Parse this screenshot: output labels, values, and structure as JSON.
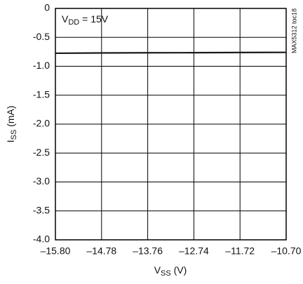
{
  "chart_data": {
    "type": "line",
    "annotation": {
      "symbol": "V",
      "subscript": "DD",
      "rest": " = 15V"
    },
    "side_note": "MAX5312 toc18",
    "xlabel": {
      "symbol": "V",
      "subscript": "SS",
      "unit": " (V)"
    },
    "ylabel": {
      "symbol": "I",
      "subscript": "SS",
      "unit": " (mA)"
    },
    "x": [
      -15.8,
      -14.78,
      -13.76,
      -12.74,
      -11.72,
      -10.7
    ],
    "series": [
      {
        "color": "#1a1a1a",
        "values": [
          -0.775,
          -0.77,
          -0.767,
          -0.765,
          -0.762,
          -0.76
        ]
      }
    ],
    "xlim": [
      -15.8,
      -10.7
    ],
    "xticks": [
      {
        "value": -15.8,
        "label": "–15.80"
      },
      {
        "value": -14.78,
        "label": "–14.78"
      },
      {
        "value": -13.76,
        "label": "–13.76"
      },
      {
        "value": -12.74,
        "label": "–12.74"
      },
      {
        "value": -11.72,
        "label": "–11.72"
      },
      {
        "value": -10.7,
        "label": "–10.70"
      }
    ],
    "ylim": [
      -4,
      0
    ],
    "yticks": [
      0,
      -0.5,
      {
        "value": -1,
        "label": "-1.0"
      },
      -1.5,
      {
        "value": -2,
        "label": "-2.0"
      },
      -2.5,
      {
        "value": -3,
        "label": "-3.0"
      },
      -3.5,
      {
        "value": -4,
        "label": "-4.0"
      }
    ],
    "grid": true
  }
}
